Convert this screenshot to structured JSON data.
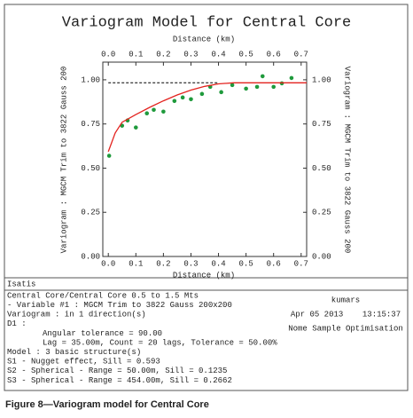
{
  "chart_data": {
    "type": "scatter",
    "title": "Variogram Model for Central Core",
    "x_label": "Distance (km)",
    "y_label": "Variogram : MGCM Trim to 3822 Gauss 200",
    "xlim": [
      -0.02,
      0.72
    ],
    "ylim": [
      0,
      1.1
    ],
    "xticks": [
      {
        "value": 0,
        "label": "0.0"
      },
      {
        "value": 0.1,
        "label": "0.1"
      },
      {
        "value": 0.2,
        "label": "0.2"
      },
      {
        "value": 0.3,
        "label": "0.3"
      },
      {
        "value": 0.4,
        "label": "0.4"
      },
      {
        "value": 0.5,
        "label": "0.5"
      },
      {
        "value": 0.6,
        "label": "0.6"
      },
      {
        "value": 0.7,
        "label": "0.7"
      }
    ],
    "yticks": [
      {
        "value": 0,
        "label": "0.00"
      },
      {
        "value": 0.25,
        "label": "0.25"
      },
      {
        "value": 0.5,
        "label": "0.50"
      },
      {
        "value": 0.75,
        "label": "0.75"
      },
      {
        "value": 1,
        "label": "1.00"
      }
    ],
    "series": [
      {
        "kind": "points",
        "color": "#1f9a3c",
        "x": [
          0.003,
          0.05,
          0.07,
          0.1,
          0.14,
          0.165,
          0.2,
          0.24,
          0.27,
          0.3,
          0.34,
          0.37,
          0.41,
          0.45,
          0.5,
          0.54,
          0.56,
          0.6,
          0.63,
          0.665
        ],
        "values": [
          0.57,
          0.74,
          0.77,
          0.73,
          0.81,
          0.83,
          0.82,
          0.88,
          0.9,
          0.89,
          0.92,
          0.96,
          0.93,
          0.97,
          0.95,
          0.96,
          1.02,
          0.96,
          0.98,
          1.01
        ]
      },
      {
        "kind": "line",
        "color": "#e3231f",
        "x": [
          0,
          0.025,
          0.05,
          0.1,
          0.15,
          0.2,
          0.25,
          0.3,
          0.35,
          0.4,
          0.454,
          0.5,
          0.6,
          0.72
        ],
        "values": [
          0.593,
          0.699,
          0.76,
          0.803,
          0.844,
          0.881,
          0.914,
          0.942,
          0.963,
          0.977,
          0.983,
          0.983,
          0.983,
          0.983
        ]
      },
      {
        "kind": "dashed",
        "color": "#000000",
        "x": [
          0,
          0.4
        ],
        "values": [
          0.983,
          0.983
        ]
      }
    ]
  },
  "info": {
    "software": "Isatis",
    "lines": [
      "Central Core/Central Core 0.5 to 1.5 Mts",
      "- Variable #1 : MGCM Trim to 3822 Gauss 200x200",
      "Variogram : in 1 direction(s)",
      "D1   :",
      "Angular tolerance =  90.00",
      "Lag =  35.00m, Count = 20 lags, Tolerance = 50.00%",
      "Model : 3 basic structure(s)",
      "S1  - Nugget effect, Sill =       0.593",
      "S2  - Spherical - Range = 50.00m, Sill =      0.1235",
      "S3  - Spherical - Range = 454.00m, Sill =       0.2662"
    ],
    "user": "kumars",
    "date": "Apr 05 2013    13:15:37",
    "project": "Nome Sample Optimisation"
  },
  "caption": "Figure 8—Variogram model for Central Core"
}
